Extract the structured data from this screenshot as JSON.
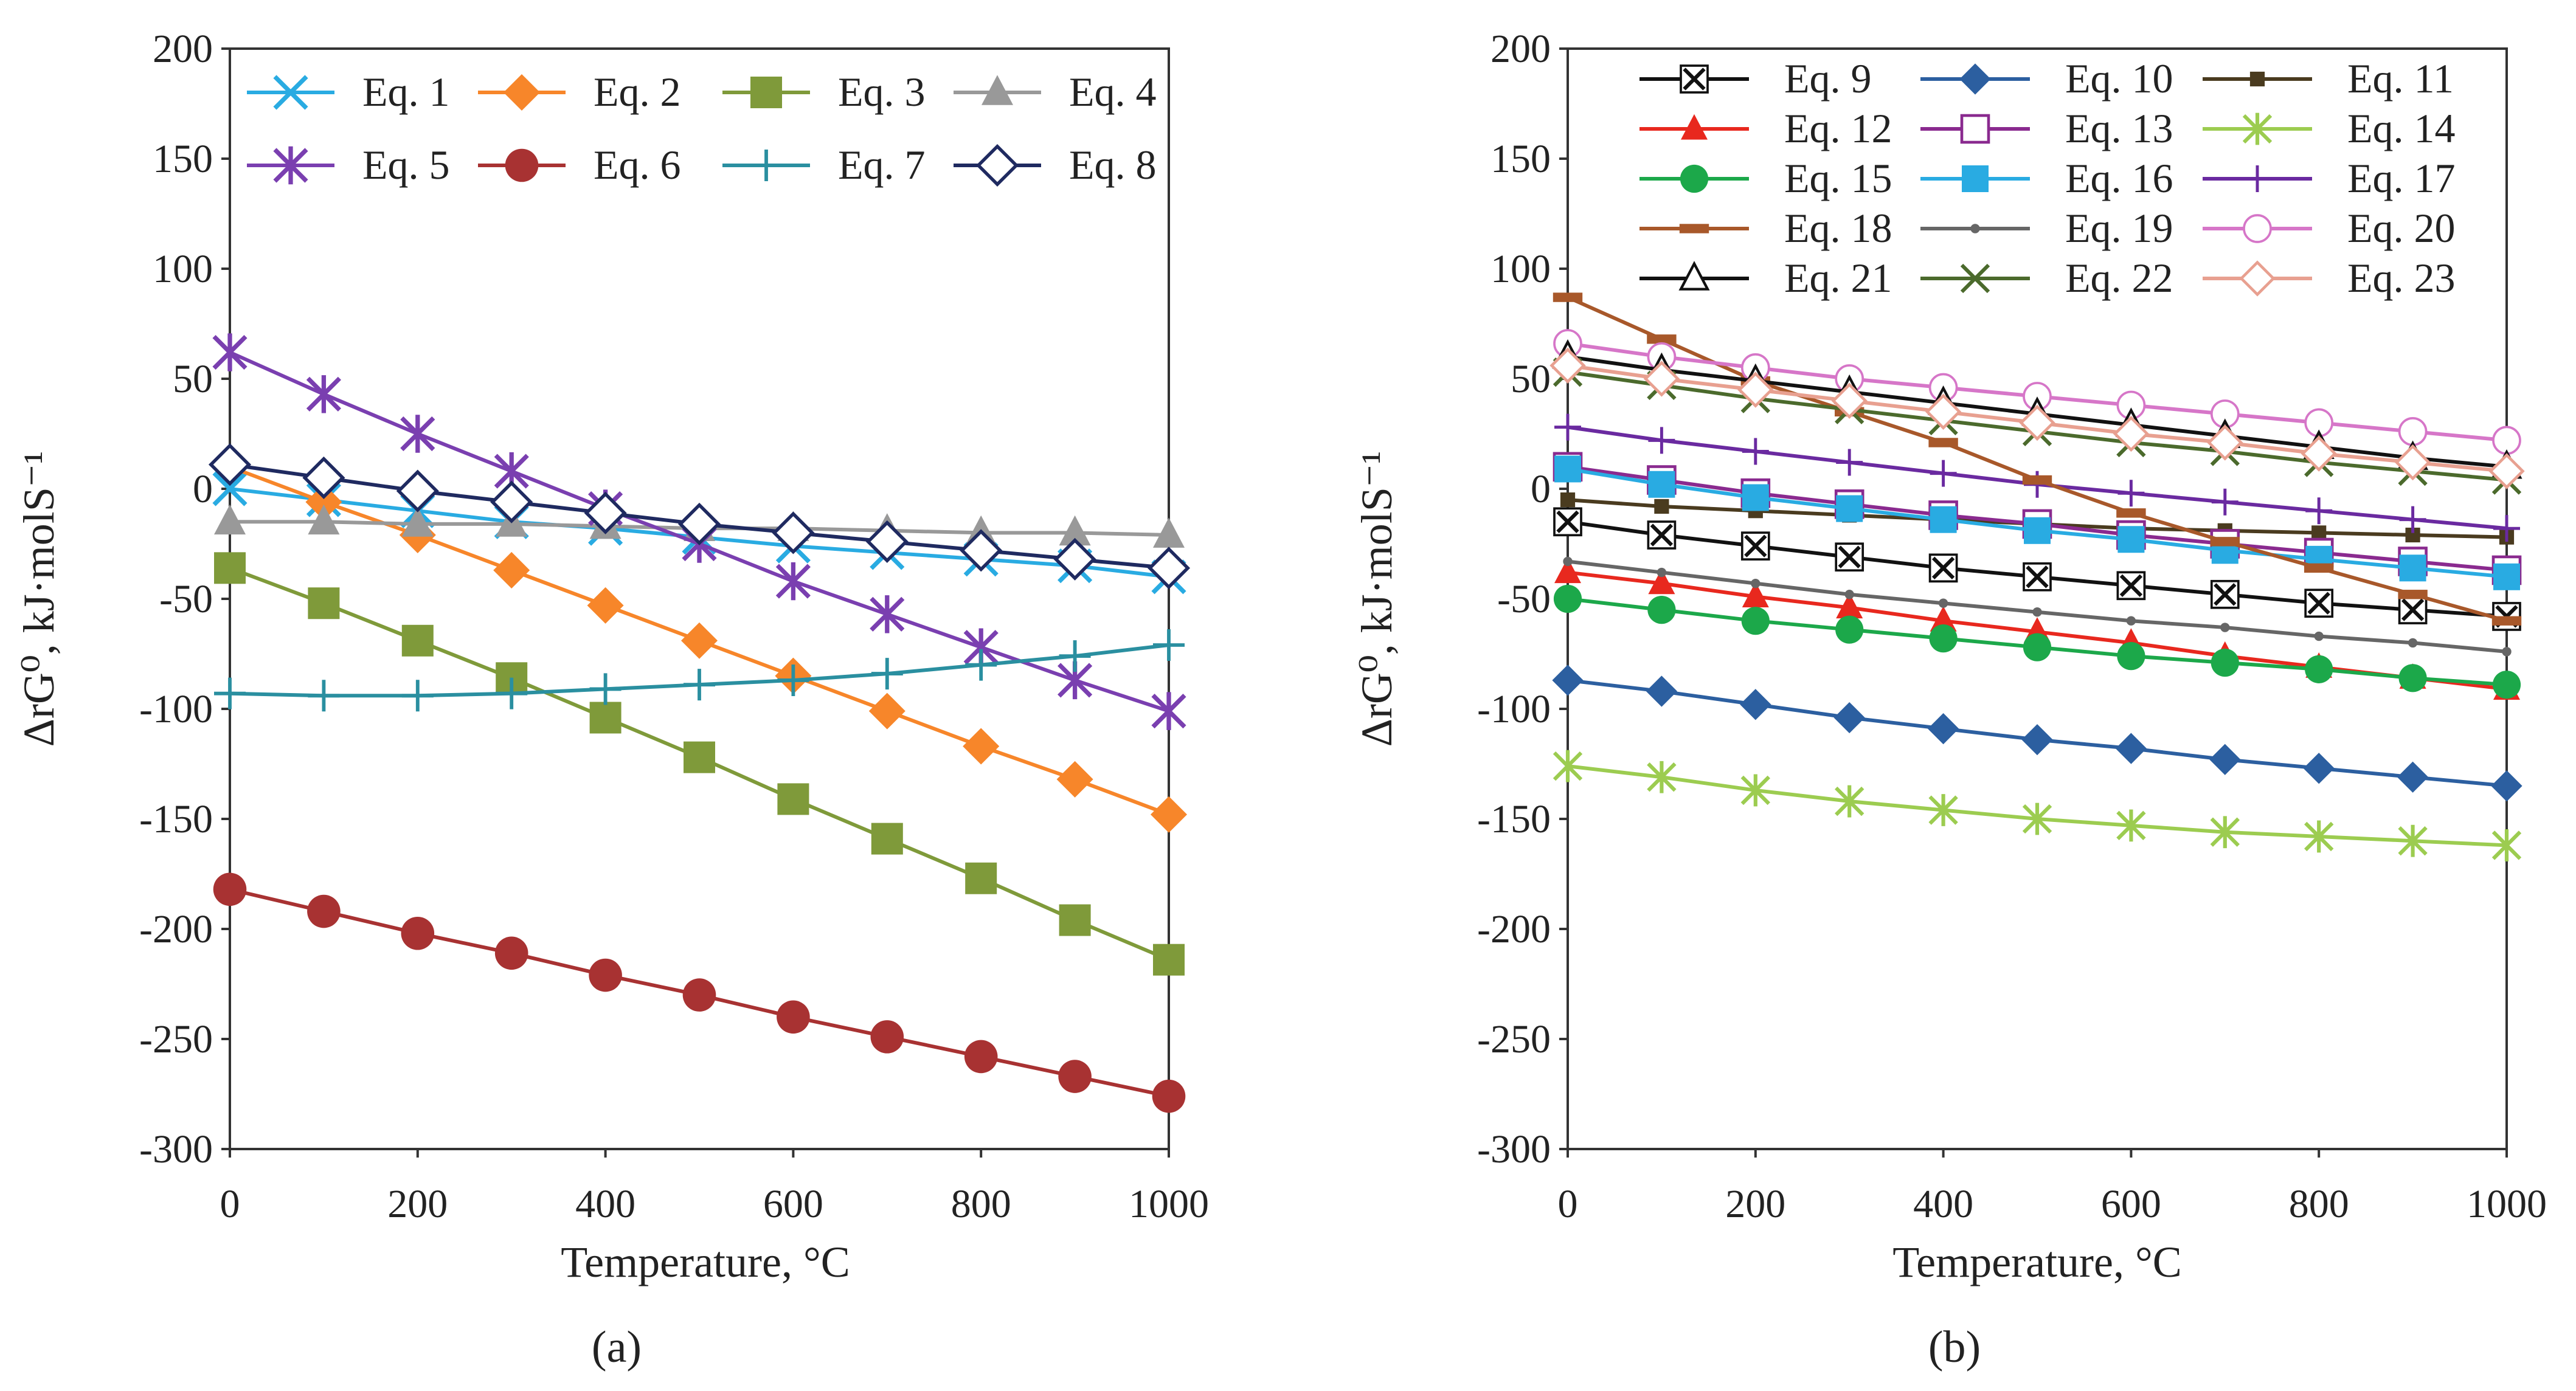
{
  "chart_data": [
    {
      "type": "line",
      "panel_label": "(a)",
      "xlabel": "Temperature, °C",
      "ylabel": "ΔrG⁰, kJ·molS⁻¹",
      "xlim": [
        0,
        1000
      ],
      "ylim": [
        -300,
        200
      ],
      "xticks": [
        "0",
        "200",
        "400",
        "600",
        "800",
        "1000"
      ],
      "yticks": [
        "200",
        "150",
        "100",
        "50",
        "0",
        "-50",
        "-100",
        "-150",
        "-200",
        "-250",
        "-300"
      ],
      "legend_position": "top",
      "x": [
        0,
        100,
        200,
        300,
        400,
        500,
        600,
        700,
        800,
        900,
        1000
      ],
      "series": [
        {
          "name": "Eq. 1",
          "color": "#29abe2",
          "marker": "x",
          "values": [
            0,
            -5,
            -10,
            -15,
            -18,
            -22,
            -26,
            -29,
            -32,
            -35,
            -40
          ]
        },
        {
          "name": "Eq. 2",
          "color": "#f7862a",
          "marker": "diamond",
          "values": [
            10,
            -6,
            -21,
            -37,
            -53,
            -69,
            -85,
            -101,
            -117,
            -132,
            -148
          ]
        },
        {
          "name": "Eq. 3",
          "color": "#7f9a3a",
          "marker": "square",
          "values": [
            -36,
            -52,
            -69,
            -86,
            -104,
            -122,
            -141,
            -159,
            -177,
            -196,
            -214
          ]
        },
        {
          "name": "Eq. 4",
          "color": "#999999",
          "marker": "triangle",
          "values": [
            -15,
            -15,
            -16,
            -16,
            -17,
            -18,
            -18,
            -19,
            -20,
            -20,
            -21
          ]
        },
        {
          "name": "Eq. 5",
          "color": "#7a3fb0",
          "marker": "star",
          "values": [
            62,
            43,
            25,
            8,
            -9,
            -25,
            -42,
            -57,
            -72,
            -87,
            -101
          ]
        },
        {
          "name": "Eq. 6",
          "color": "#a83232",
          "marker": "circle",
          "values": [
            -182,
            -192,
            -202,
            -211,
            -221,
            -230,
            -240,
            -249,
            -258,
            -267,
            -276
          ]
        },
        {
          "name": "Eq. 7",
          "color": "#2a8fa0",
          "marker": "plus",
          "values": [
            -93,
            -94,
            -94,
            -93,
            -91,
            -89,
            -87,
            -84,
            -80,
            -76,
            -71
          ]
        },
        {
          "name": "Eq. 8",
          "color": "#1f2a60",
          "marker": "open-diamond",
          "values": [
            11,
            5,
            -1,
            -6,
            -11,
            -16,
            -20,
            -24,
            -28,
            -32,
            -36
          ]
        }
      ]
    },
    {
      "type": "line",
      "panel_label": "(b)",
      "xlabel": "Temperature, °C",
      "ylabel": "ΔrG⁰, kJ·molS⁻¹",
      "xlim": [
        0,
        1000
      ],
      "ylim": [
        -300,
        200
      ],
      "xticks": [
        "0",
        "200",
        "400",
        "600",
        "800",
        "1000"
      ],
      "yticks": [
        "200",
        "150",
        "100",
        "50",
        "0",
        "-50",
        "-100",
        "-150",
        "-200",
        "-250",
        "-300"
      ],
      "legend_position": "top",
      "x": [
        0,
        100,
        200,
        300,
        400,
        500,
        600,
        700,
        800,
        900,
        1000
      ],
      "series": [
        {
          "name": "Eq. 9",
          "color": "#111111",
          "marker": "boxed-x",
          "values": [
            -15,
            -21,
            -26,
            -31,
            -36,
            -40,
            -44,
            -48,
            -52,
            -55,
            -58
          ]
        },
        {
          "name": "Eq. 10",
          "color": "#2c5fa0",
          "marker": "diamond",
          "values": [
            -87,
            -92,
            -98,
            -104,
            -109,
            -114,
            -118,
            -123,
            -127,
            -131,
            -135
          ]
        },
        {
          "name": "Eq. 11",
          "color": "#4a3b1f",
          "marker": "small-square",
          "values": [
            -5,
            -8,
            -10,
            -12,
            -14,
            -16,
            -18,
            -19,
            -20,
            -21,
            -22
          ]
        },
        {
          "name": "Eq. 12",
          "color": "#e8281e",
          "marker": "triangle",
          "values": [
            -38,
            -43,
            -49,
            -54,
            -60,
            -65,
            -70,
            -76,
            -81,
            -86,
            -91
          ]
        },
        {
          "name": "Eq. 13",
          "color": "#8a2a8f",
          "marker": "open-square",
          "values": [
            10,
            4,
            -2,
            -7,
            -12,
            -16,
            -21,
            -25,
            -29,
            -33,
            -37
          ]
        },
        {
          "name": "Eq. 14",
          "color": "#9ccc50",
          "marker": "star",
          "values": [
            -126,
            -131,
            -137,
            -142,
            -146,
            -150,
            -153,
            -156,
            -158,
            -160,
            -162
          ]
        },
        {
          "name": "Eq. 15",
          "color": "#1ca84a",
          "marker": "circle",
          "values": [
            -50,
            -55,
            -60,
            -64,
            -68,
            -72,
            -76,
            -79,
            -82,
            -86,
            -89
          ]
        },
        {
          "name": "Eq. 16",
          "color": "#29abe2",
          "marker": "square",
          "values": [
            9,
            2,
            -4,
            -9,
            -14,
            -19,
            -23,
            -28,
            -32,
            -36,
            -40
          ]
        },
        {
          "name": "Eq. 17",
          "color": "#6a2aa0",
          "marker": "plus",
          "values": [
            28,
            22,
            17,
            12,
            7,
            2,
            -2,
            -6,
            -10,
            -14,
            -18
          ]
        },
        {
          "name": "Eq. 18",
          "color": "#a8582a",
          "marker": "dash",
          "values": [
            87,
            68,
            49,
            35,
            21,
            4,
            -11,
            -24,
            -36,
            -48,
            -60
          ]
        },
        {
          "name": "Eq. 19",
          "color": "#666666",
          "marker": "dot",
          "values": [
            -33,
            -38,
            -43,
            -48,
            -52,
            -56,
            -60,
            -63,
            -67,
            -70,
            -74
          ]
        },
        {
          "name": "Eq. 20",
          "color": "#d676c8",
          "marker": "open-circle",
          "values": [
            66,
            60,
            55,
            50,
            46,
            42,
            38,
            34,
            30,
            26,
            22
          ]
        },
        {
          "name": "Eq. 21",
          "color": "#111111",
          "marker": "open-triangle",
          "values": [
            60,
            54,
            49,
            44,
            39,
            34,
            29,
            24,
            19,
            14,
            10
          ]
        },
        {
          "name": "Eq. 22",
          "color": "#4b6a2c",
          "marker": "x",
          "values": [
            53,
            47,
            41,
            36,
            31,
            26,
            21,
            17,
            12,
            8,
            4
          ]
        },
        {
          "name": "Eq. 23",
          "color": "#e8a090",
          "marker": "open-diamond",
          "values": [
            56,
            50,
            45,
            40,
            35,
            30,
            25,
            21,
            16,
            12,
            8
          ]
        }
      ]
    }
  ]
}
